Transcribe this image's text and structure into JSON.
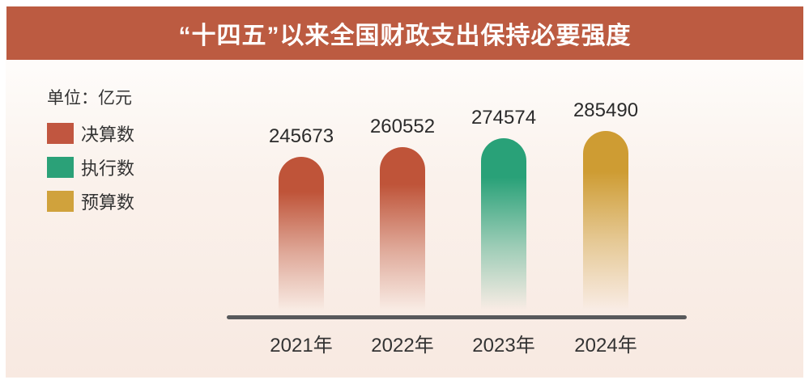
{
  "title": "“十四五”以来全国财政支出保持必要强度",
  "unit_label": "单位：亿元",
  "legend": [
    {
      "label": "决算数",
      "color": "#C15640"
    },
    {
      "label": "执行数",
      "color": "#2BA178"
    },
    {
      "label": "预算数",
      "color": "#D0A23C"
    }
  ],
  "colors": {
    "banner_background": "#BC5B41",
    "axis_line": "#58595B",
    "value_text": "#2B2B2B",
    "card_background_top": "#FFFFFF",
    "card_background_bottom": "#F8E9E1"
  },
  "chart_data": {
    "type": "bar",
    "title": "“十四五”以来全国财政支出保持必要强度",
    "ylabel": "亿元",
    "categories": [
      "2021年",
      "2022年",
      "2023年",
      "2024年"
    ],
    "values": [
      245673,
      260552,
      274574,
      285490
    ],
    "value_labels": [
      "245673",
      "260552",
      "274574",
      "285490"
    ],
    "series_of_each_bar": [
      "决算数",
      "决算数",
      "执行数",
      "预算数"
    ],
    "bar_colors": [
      "#BF5439",
      "#BF5439",
      "#29A178",
      "#CE9C33"
    ],
    "bar_style": "rounded-top pill, gradient fading to background at bottom",
    "ylim": [
      0,
      285490
    ],
    "grid": false,
    "legend_position": "upper-left"
  }
}
